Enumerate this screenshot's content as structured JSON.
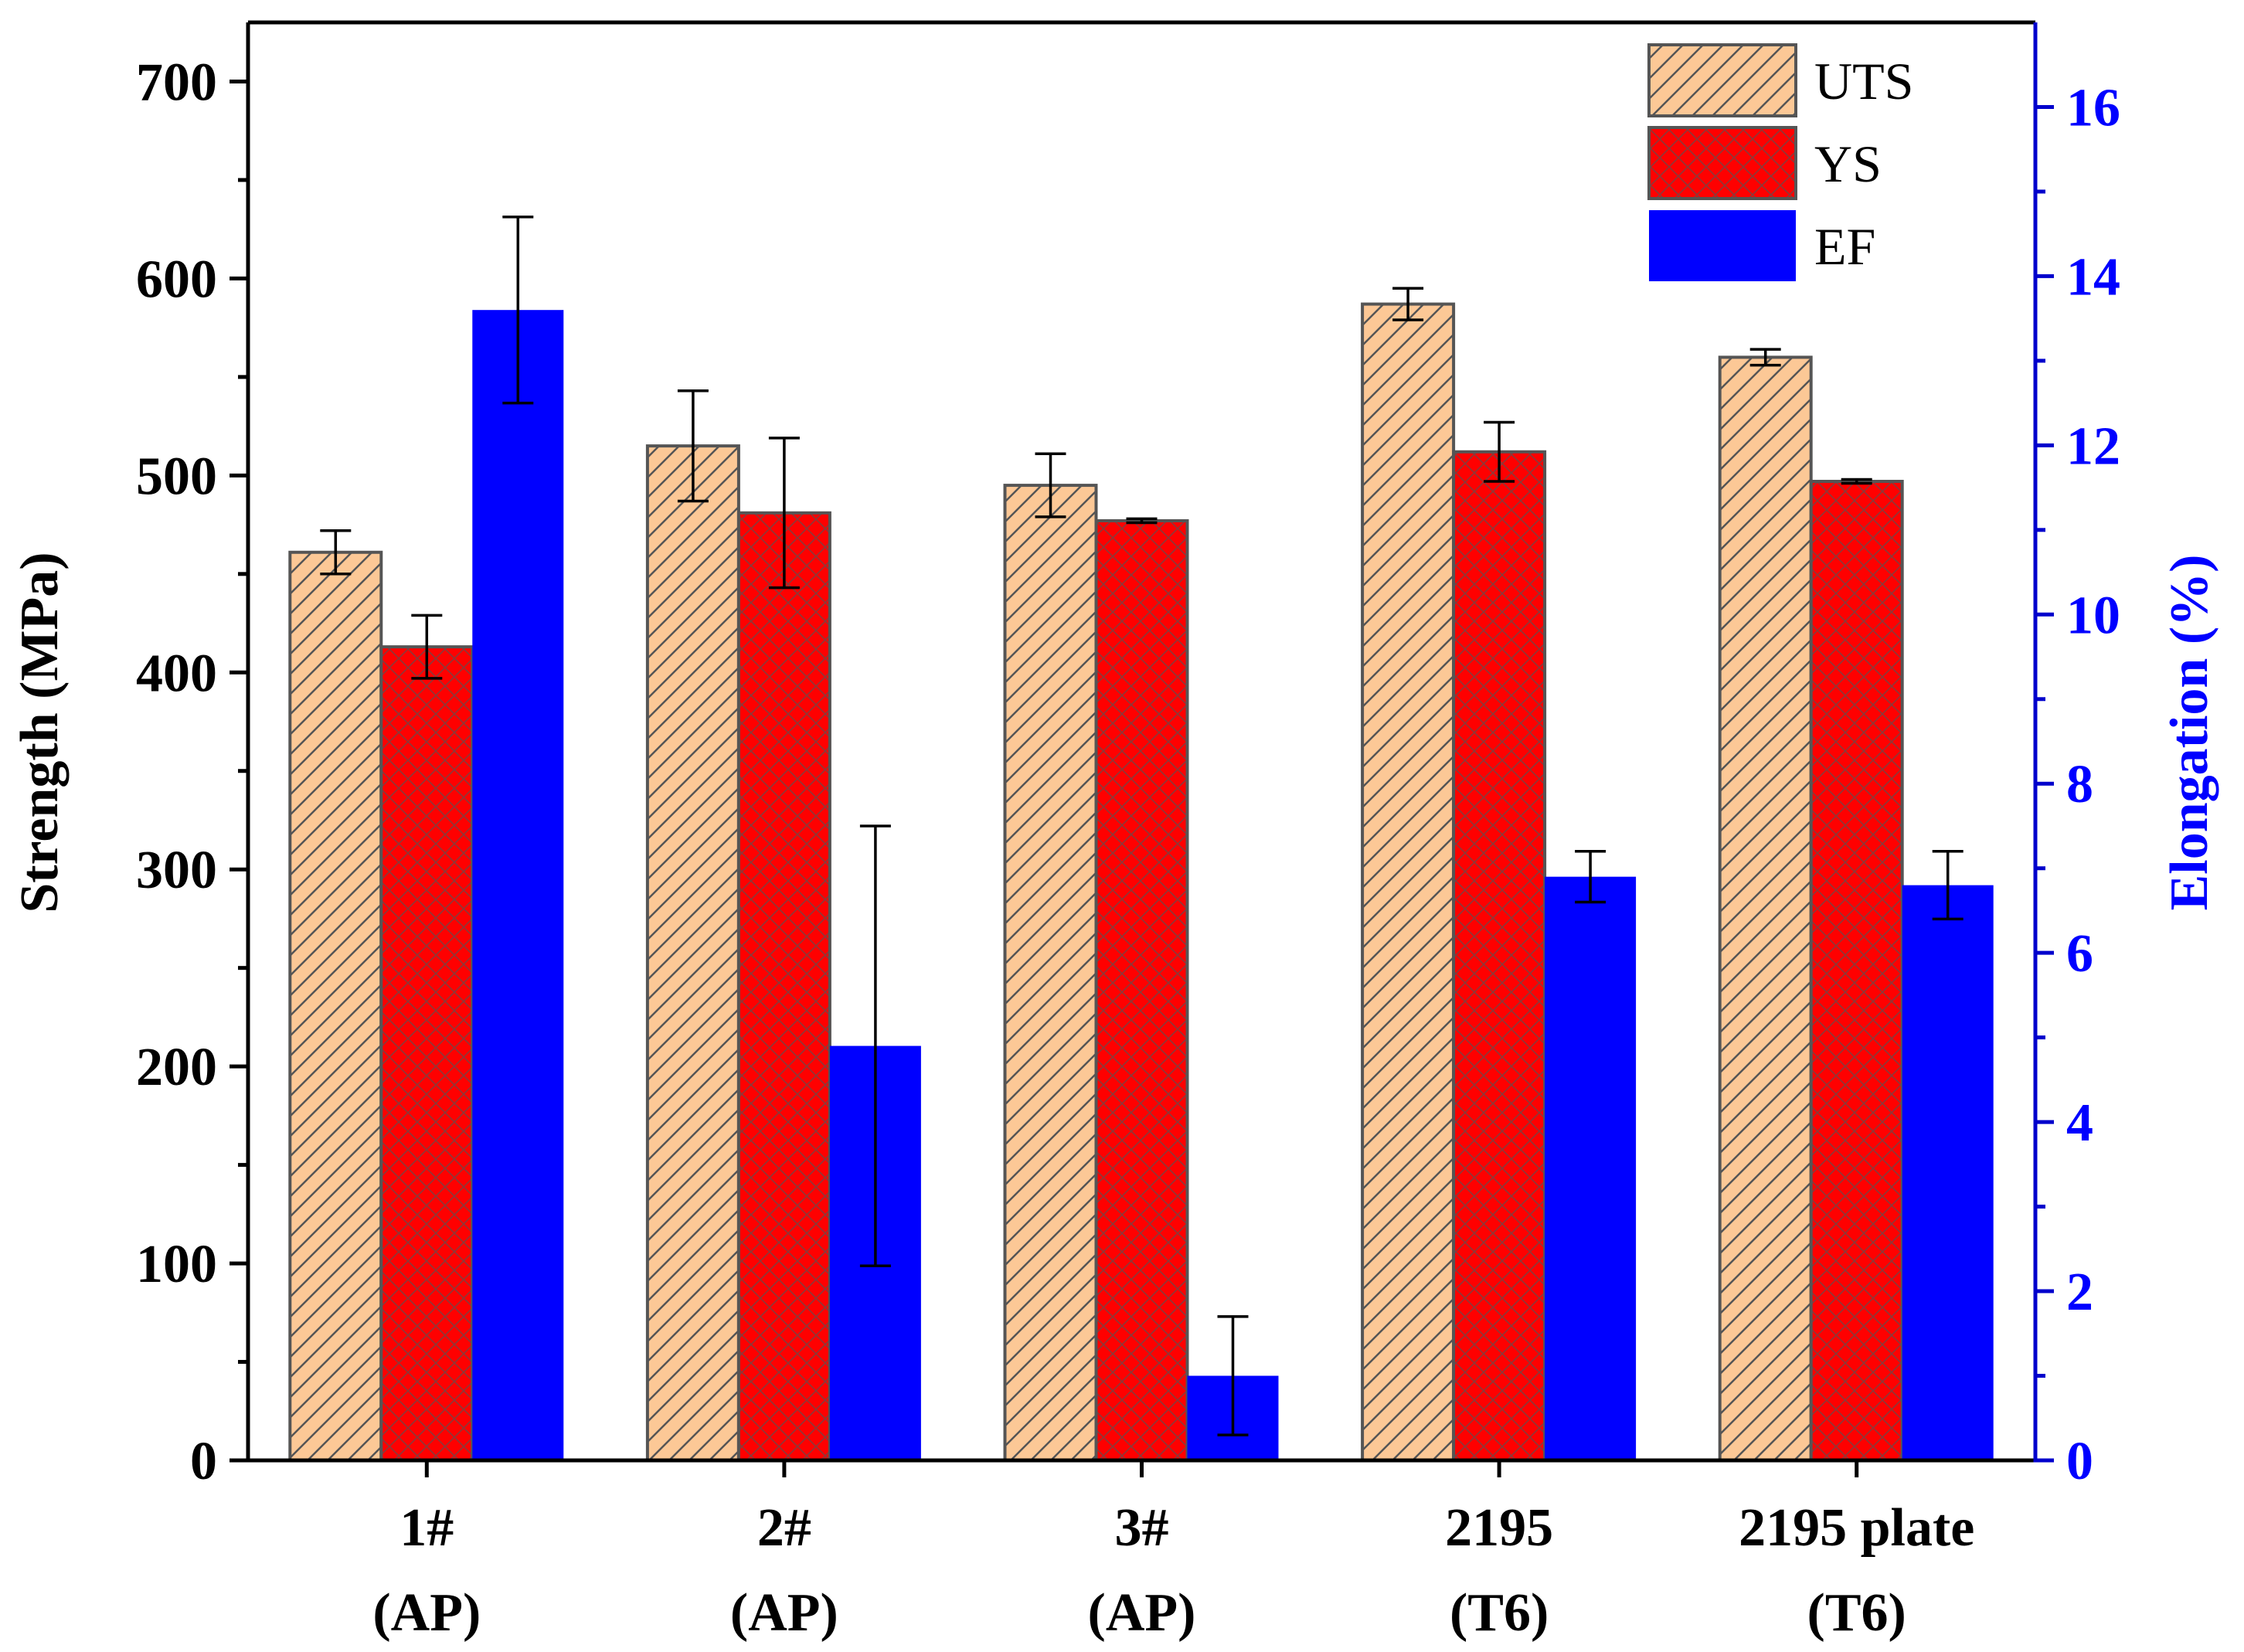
{
  "chart_data": {
    "type": "bar",
    "categories": [
      {
        "line1": "1#",
        "line2": "(AP)"
      },
      {
        "line1": "2#",
        "line2": "(AP)"
      },
      {
        "line1": "3#",
        "line2": "(AP)"
      },
      {
        "line1": "2195",
        "line2": "(T6)"
      },
      {
        "line1": "2195 plate",
        "line2": "(T6)"
      }
    ],
    "series": [
      {
        "name": "UTS",
        "axis": "left",
        "pattern": "hatch",
        "color": "#fcc896",
        "values": [
          461,
          515,
          495,
          587,
          560
        ],
        "errors": [
          11,
          28,
          16,
          8,
          4
        ]
      },
      {
        "name": "YS",
        "axis": "left",
        "pattern": "crosshatch",
        "color": "#ff0000",
        "values": [
          413,
          481,
          477,
          512,
          497
        ],
        "errors": [
          16,
          38,
          1,
          15,
          1
        ]
      },
      {
        "name": "EF",
        "axis": "right",
        "pattern": "solid",
        "color": "#0000ff",
        "values": [
          13.6,
          4.9,
          1.0,
          6.9,
          6.8
        ],
        "errors": [
          1.1,
          2.6,
          0.7,
          0.3,
          0.4
        ]
      }
    ],
    "ylabel": "Strength (MPa)",
    "y2label": "Elongation (%)",
    "ylim": [
      0,
      730
    ],
    "y2lim": [
      0,
      17
    ],
    "yticks": [
      0,
      100,
      200,
      300,
      400,
      500,
      600,
      700
    ],
    "y2ticks": [
      0,
      2,
      4,
      6,
      8,
      10,
      12,
      14,
      16
    ],
    "y2color": "#0000ff",
    "legend_position": "top-right"
  }
}
